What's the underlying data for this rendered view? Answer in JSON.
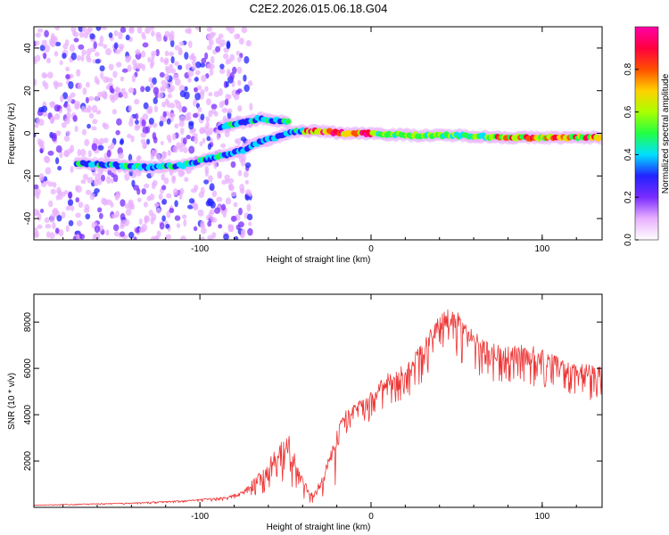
{
  "chart_data": [
    {
      "type": "heatmap",
      "title": "C2E2.2026.015.06.18.G04",
      "xlabel": "Height of straight line (km)",
      "ylabel": "Frequency (Hz)",
      "xlim": [
        -197,
        135
      ],
      "ylim": [
        -50,
        50
      ],
      "x_ticks": [
        -100,
        0,
        100
      ],
      "y_ticks": [
        -40,
        -20,
        0,
        20,
        40
      ],
      "colorbar": {
        "label": "Normalized spectral amplitude",
        "range": [
          0,
          1
        ],
        "ticks": [
          0,
          0.2,
          0.4,
          0.6,
          0.8
        ],
        "colors": [
          "#ffffff",
          "#e8b0ff",
          "#7a2cff",
          "#2222ff",
          "#00e0ff",
          "#22ff44",
          "#aaff00",
          "#ffd000",
          "#ff5000",
          "#ff0040",
          "#ff00a8"
        ]
      },
      "ridge": [
        {
          "x": -170,
          "y": -14
        },
        {
          "x": -150,
          "y": -15
        },
        {
          "x": -130,
          "y": -16
        },
        {
          "x": -110,
          "y": -15
        },
        {
          "x": -95,
          "y": -12
        },
        {
          "x": -85,
          "y": -10
        },
        {
          "x": -75,
          "y": -8
        },
        {
          "x": -65,
          "y": -4
        },
        {
          "x": -55,
          "y": -2
        },
        {
          "x": -45,
          "y": 1
        },
        {
          "x": -30,
          "y": 1
        },
        {
          "x": -15,
          "y": 0
        },
        {
          "x": 0,
          "y": 0
        },
        {
          "x": 25,
          "y": -1
        },
        {
          "x": 50,
          "y": -1
        },
        {
          "x": 80,
          "y": -2
        },
        {
          "x": 110,
          "y": -2
        },
        {
          "x": 135,
          "y": -2
        }
      ],
      "upper_ridge": [
        {
          "x": -88,
          "y": 3
        },
        {
          "x": -75,
          "y": 5
        },
        {
          "x": -65,
          "y": 7
        },
        {
          "x": -55,
          "y": 6
        },
        {
          "x": -48,
          "y": 5
        }
      ]
    },
    {
      "type": "line",
      "title": "",
      "xlabel": "Height of straight line (km)",
      "ylabel": "SNR (10 * v/v)",
      "xlim": [
        -197,
        135
      ],
      "ylim": [
        0,
        9200
      ],
      "x_ticks": [
        -100,
        0,
        100
      ],
      "y_ticks": [
        2000,
        4000,
        6000,
        8000
      ],
      "color": "#ee3333",
      "envelope": [
        {
          "x": -197,
          "y": 100
        },
        {
          "x": -170,
          "y": 150
        },
        {
          "x": -140,
          "y": 200
        },
        {
          "x": -110,
          "y": 300
        },
        {
          "x": -85,
          "y": 450
        },
        {
          "x": -75,
          "y": 700
        },
        {
          "x": -63,
          "y": 1700
        },
        {
          "x": -55,
          "y": 2600
        },
        {
          "x": -48,
          "y": 3200
        },
        {
          "x": -42,
          "y": 1600
        },
        {
          "x": -35,
          "y": 600
        },
        {
          "x": -28,
          "y": 1400
        },
        {
          "x": -22,
          "y": 3000
        },
        {
          "x": -15,
          "y": 4200
        },
        {
          "x": -8,
          "y": 4600
        },
        {
          "x": 0,
          "y": 5000
        },
        {
          "x": 10,
          "y": 5800
        },
        {
          "x": 20,
          "y": 6200
        },
        {
          "x": 30,
          "y": 7200
        },
        {
          "x": 40,
          "y": 8300
        },
        {
          "x": 48,
          "y": 8700
        },
        {
          "x": 55,
          "y": 8100
        },
        {
          "x": 65,
          "y": 7300
        },
        {
          "x": 75,
          "y": 7000
        },
        {
          "x": 90,
          "y": 7100
        },
        {
          "x": 105,
          "y": 6700
        },
        {
          "x": 115,
          "y": 6300
        },
        {
          "x": 125,
          "y": 6200
        },
        {
          "x": 135,
          "y": 6100
        }
      ]
    }
  ]
}
